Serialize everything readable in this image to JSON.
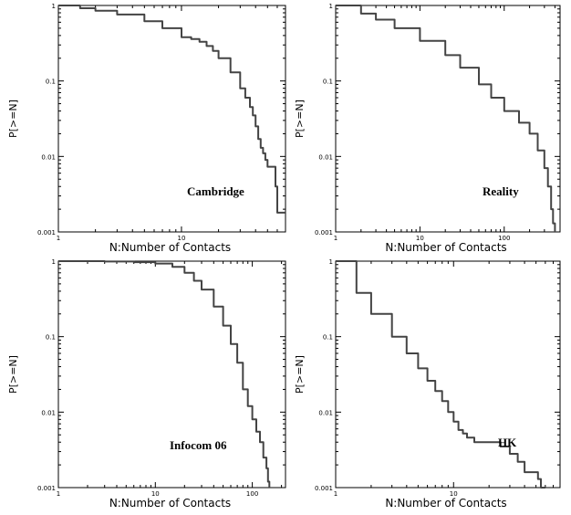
{
  "chart_data": [
    {
      "type": "line",
      "label": "Cambridge",
      "xlabel": "N:Number of Contacts",
      "ylabel": "P[>=N]",
      "xscale": "log",
      "yscale": "log",
      "xlim": [
        1,
        70
      ],
      "ylim": [
        0.001,
        1
      ],
      "xticks": [
        {
          "v": 1,
          "t": "1"
        },
        {
          "v": 10,
          "t": "10"
        }
      ],
      "yticks": [
        {
          "v": 1,
          "t": "1"
        },
        {
          "v": 0.1,
          "t": "0.1"
        },
        {
          "v": 0.01,
          "t": "0.01"
        },
        {
          "v": 0.001,
          "t": "0.001"
        }
      ],
      "x": [
        1,
        1.5,
        2,
        3,
        5,
        7,
        10,
        12,
        14,
        16,
        18,
        20,
        25,
        30,
        33,
        36,
        38,
        40,
        42,
        44,
        46,
        48,
        50,
        55,
        58,
        60,
        62,
        70
      ],
      "y": [
        1,
        0.92,
        0.85,
        0.76,
        0.62,
        0.5,
        0.38,
        0.36,
        0.33,
        0.29,
        0.25,
        0.2,
        0.13,
        0.08,
        0.06,
        0.045,
        0.035,
        0.025,
        0.017,
        0.013,
        0.011,
        0.009,
        0.0073,
        0.0073,
        0.004,
        0.0018,
        0.0018,
        0.0018
      ]
    },
    {
      "type": "line",
      "label": "Reality",
      "xlabel": "N:Number of Contacts",
      "ylabel": "P[>=N]",
      "xscale": "log",
      "yscale": "log",
      "xlim": [
        1,
        460
      ],
      "ylim": [
        0.001,
        1
      ],
      "xticks": [
        {
          "v": 1,
          "t": "1"
        },
        {
          "v": 10,
          "t": "10"
        },
        {
          "v": 100,
          "t": "100"
        }
      ],
      "yticks": [
        {
          "v": 1,
          "t": "1"
        },
        {
          "v": 0.1,
          "t": "0.1"
        },
        {
          "v": 0.01,
          "t": "0.01"
        },
        {
          "v": 0.001,
          "t": "0.001"
        }
      ],
      "x": [
        1,
        2,
        3,
        5,
        10,
        20,
        30,
        50,
        70,
        100,
        150,
        200,
        250,
        300,
        330,
        360,
        380,
        400
      ],
      "y": [
        1,
        0.78,
        0.65,
        0.5,
        0.34,
        0.22,
        0.15,
        0.09,
        0.06,
        0.04,
        0.028,
        0.02,
        0.012,
        0.007,
        0.004,
        0.002,
        0.0013,
        0.001
      ]
    },
    {
      "type": "line",
      "label": "Infocom 06",
      "xlabel": "N:Number of Contacts",
      "ylabel": "P[>=N]",
      "xscale": "log",
      "yscale": "log",
      "xlim": [
        1,
        220
      ],
      "ylim": [
        0.001,
        1
      ],
      "xticks": [
        {
          "v": 1,
          "t": "1"
        },
        {
          "v": 10,
          "t": "10"
        },
        {
          "v": 100,
          "t": "100"
        }
      ],
      "yticks": [
        {
          "v": 1,
          "t": "1"
        },
        {
          "v": 0.1,
          "t": "0.1"
        },
        {
          "v": 0.01,
          "t": "0.01"
        },
        {
          "v": 0.001,
          "t": "0.001"
        }
      ],
      "x": [
        1,
        3,
        6,
        10,
        15,
        20,
        25,
        30,
        40,
        50,
        60,
        70,
        80,
        90,
        100,
        110,
        120,
        130,
        140,
        145,
        150
      ],
      "y": [
        1,
        0.99,
        0.97,
        0.93,
        0.84,
        0.7,
        0.55,
        0.42,
        0.25,
        0.14,
        0.08,
        0.045,
        0.02,
        0.012,
        0.008,
        0.0055,
        0.004,
        0.0025,
        0.0018,
        0.0012,
        0.001
      ]
    },
    {
      "type": "line",
      "label": "HK",
      "xlabel": "N:Number of Contacts",
      "ylabel": "P[>=N]",
      "xscale": "log",
      "yscale": "log",
      "xlim": [
        1,
        80
      ],
      "ylim": [
        0.001,
        1
      ],
      "xticks": [
        {
          "v": 1,
          "t": "1"
        },
        {
          "v": 10,
          "t": "10"
        }
      ],
      "yticks": [
        {
          "v": 1,
          "t": "1"
        },
        {
          "v": 0.1,
          "t": "0.1"
        },
        {
          "v": 0.01,
          "t": "0.01"
        },
        {
          "v": 0.001,
          "t": "0.001"
        }
      ],
      "x": [
        1,
        1.5,
        2,
        3,
        4,
        5,
        6,
        7,
        8,
        9,
        10,
        11,
        12,
        13,
        15,
        20,
        25,
        30,
        35,
        38,
        40,
        45,
        50,
        52,
        55,
        60
      ],
      "y": [
        1,
        0.38,
        0.2,
        0.1,
        0.06,
        0.038,
        0.026,
        0.019,
        0.014,
        0.01,
        0.0075,
        0.0058,
        0.0052,
        0.0046,
        0.004,
        0.004,
        0.0035,
        0.0028,
        0.0022,
        0.0022,
        0.0016,
        0.0016,
        0.0016,
        0.0013,
        0.001,
        0.001
      ]
    }
  ]
}
